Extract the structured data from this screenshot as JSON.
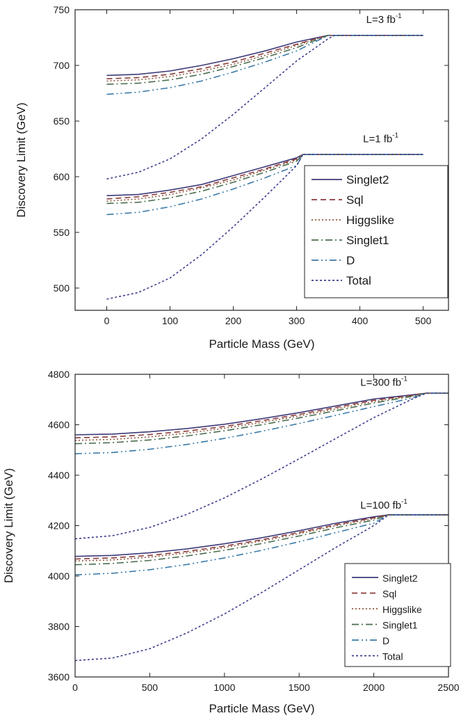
{
  "chart_data": [
    {
      "type": "line",
      "xlabel": "Particle Mass (GeV)",
      "ylabel": "Discovery Limit (GeV)",
      "xlim": [
        -50,
        540
      ],
      "ylim": [
        480,
        750
      ],
      "xticks": [
        0,
        100,
        200,
        300,
        400,
        500
      ],
      "yticks": [
        500,
        550,
        600,
        650,
        700,
        750
      ],
      "legend_position": "lower-right",
      "annotations": [
        {
          "text": "L=3 fb",
          "sup": "-1",
          "x": 410,
          "y": 738
        },
        {
          "text": "L=1 fb",
          "sup": "-1",
          "x": 405,
          "y": 631
        }
      ],
      "series": [
        {
          "name": "Singlet2",
          "color": "#3d3a78",
          "dash": "",
          "groups": [
            {
              "label": "L=3 fb-1",
              "x": [
                0,
                50,
                100,
                150,
                200,
                250,
                300,
                350,
                500
              ],
              "y": [
                691,
                692,
                695,
                700,
                706,
                713,
                721,
                727,
                727
              ]
            },
            {
              "label": "L=1 fb-1",
              "x": [
                0,
                50,
                100,
                150,
                200,
                250,
                300,
                310,
                500
              ],
              "y": [
                583,
                584,
                588,
                593,
                601,
                609,
                617,
                620,
                620
              ]
            }
          ]
        },
        {
          "name": "Sql",
          "color": "#8b3a3a",
          "dash": "8,5",
          "groups": [
            {
              "label": "L=3 fb-1",
              "x": [
                0,
                50,
                100,
                150,
                200,
                250,
                300,
                350,
                500
              ],
              "y": [
                688,
                689,
                692,
                697,
                703,
                711,
                719,
                727,
                727
              ]
            },
            {
              "label": "L=1 fb-1",
              "x": [
                0,
                50,
                100,
                150,
                200,
                250,
                300,
                310,
                500
              ],
              "y": [
                580,
                582,
                586,
                591,
                599,
                607,
                616,
                620,
                620
              ]
            }
          ]
        },
        {
          "name": "Higgslike",
          "color": "#8e5a3e",
          "dash": "2,3",
          "groups": [
            {
              "label": "L=3 fb-1",
              "x": [
                0,
                50,
                100,
                150,
                200,
                250,
                300,
                350,
                500
              ],
              "y": [
                686,
                687,
                690,
                695,
                701,
                709,
                718,
                727,
                727
              ]
            },
            {
              "label": "L=1 fb-1",
              "x": [
                0,
                50,
                100,
                150,
                200,
                250,
                300,
                310,
                500
              ],
              "y": [
                578,
                580,
                584,
                590,
                597,
                606,
                615,
                620,
                620
              ]
            }
          ]
        },
        {
          "name": "Singlet1",
          "color": "#4a6e4e",
          "dash": "10,4,2,4",
          "groups": [
            {
              "label": "L=3 fb-1",
              "x": [
                0,
                50,
                100,
                150,
                200,
                250,
                300,
                350,
                500
              ],
              "y": [
                683,
                684,
                687,
                692,
                699,
                707,
                716,
                727,
                727
              ]
            },
            {
              "label": "L=1 fb-1",
              "x": [
                0,
                50,
                100,
                150,
                200,
                250,
                300,
                310,
                500
              ],
              "y": [
                576,
                577,
                581,
                587,
                595,
                604,
                614,
                620,
                620
              ]
            }
          ]
        },
        {
          "name": "D",
          "color": "#3a7aa8",
          "dash": "10,4,2,4,2,4",
          "groups": [
            {
              "label": "L=3 fb-1",
              "x": [
                0,
                50,
                100,
                150,
                200,
                250,
                300,
                350,
                500
              ],
              "y": [
                674,
                676,
                680,
                686,
                694,
                703,
                713,
                727,
                727
              ]
            },
            {
              "label": "L=1 fb-1",
              "x": [
                0,
                50,
                100,
                150,
                200,
                250,
                300,
                310,
                500
              ],
              "y": [
                566,
                568,
                573,
                580,
                589,
                599,
                610,
                620,
                620
              ]
            }
          ]
        },
        {
          "name": "Total",
          "color": "#3b3c8c",
          "dash": "3,3",
          "groups": [
            {
              "label": "L=3 fb-1",
              "x": [
                0,
                50,
                100,
                150,
                200,
                250,
                300,
                350,
                360,
                500
              ],
              "y": [
                598,
                604,
                616,
                634,
                656,
                680,
                704,
                724,
                727,
                727
              ]
            },
            {
              "label": "L=1 fb-1",
              "x": [
                0,
                50,
                100,
                150,
                200,
                250,
                300,
                310,
                500
              ],
              "y": [
                490,
                496,
                509,
                530,
                555,
                582,
                610,
                620,
                620
              ]
            }
          ]
        }
      ]
    },
    {
      "type": "line",
      "xlabel": "Particle Mass (GeV)",
      "ylabel": "Discovery Limit (GeV)",
      "xlim": [
        0,
        2500
      ],
      "ylim": [
        3600,
        4800
      ],
      "xticks": [
        0,
        500,
        1000,
        1500,
        2000,
        2500
      ],
      "yticks": [
        3600,
        3800,
        4000,
        4200,
        4400,
        4600,
        4800
      ],
      "legend_position": "lower-right",
      "annotations": [
        {
          "text": "L=300 fb",
          "sup": "-1",
          "x": 1910,
          "y": 4755
        },
        {
          "text": "L=100 fb",
          "sup": "-1",
          "x": 1910,
          "y": 4268
        }
      ],
      "series": [
        {
          "name": "Singlet2",
          "color": "#3d3a78",
          "dash": "",
          "groups": [
            {
              "label": "L=300 fb-1",
              "x": [
                0,
                250,
                500,
                750,
                1000,
                1250,
                1500,
                1750,
                2000,
                2250,
                2350,
                2500
              ],
              "y": [
                4560,
                4563,
                4572,
                4585,
                4602,
                4624,
                4648,
                4675,
                4702,
                4718,
                4725,
                4725
              ]
            },
            {
              "label": "L=100 fb-1",
              "x": [
                0,
                250,
                500,
                750,
                1000,
                1250,
                1500,
                1750,
                2000,
                2100,
                2500
              ],
              "y": [
                4078,
                4082,
                4092,
                4108,
                4128,
                4152,
                4180,
                4210,
                4235,
                4243,
                4243
              ]
            }
          ]
        },
        {
          "name": "Sql",
          "color": "#8b3a3a",
          "dash": "8,5",
          "groups": [
            {
              "label": "L=300 fb-1",
              "x": [
                0,
                250,
                500,
                750,
                1000,
                1250,
                1500,
                1750,
                2000,
                2250,
                2350,
                2500
              ],
              "y": [
                4548,
                4552,
                4561,
                4575,
                4593,
                4616,
                4641,
                4669,
                4697,
                4716,
                4725,
                4725
              ]
            },
            {
              "label": "L=100 fb-1",
              "x": [
                0,
                250,
                500,
                750,
                1000,
                1250,
                1500,
                1750,
                2000,
                2100,
                2500
              ],
              "y": [
                4068,
                4072,
                4082,
                4098,
                4119,
                4144,
                4173,
                4204,
                4231,
                4243,
                4243
              ]
            }
          ]
        },
        {
          "name": "Higgslike",
          "color": "#8e5a3e",
          "dash": "2,3",
          "groups": [
            {
              "label": "L=300 fb-1",
              "x": [
                0,
                250,
                500,
                750,
                1000,
                1250,
                1500,
                1750,
                2000,
                2250,
                2350,
                2500
              ],
              "y": [
                4538,
                4542,
                4552,
                4567,
                4586,
                4609,
                4635,
                4663,
                4692,
                4714,
                4725,
                4725
              ]
            },
            {
              "label": "L=100 fb-1",
              "x": [
                0,
                250,
                500,
                750,
                1000,
                1250,
                1500,
                1750,
                2000,
                2100,
                2500
              ],
              "y": [
                4060,
                4064,
                4075,
                4092,
                4113,
                4139,
                4168,
                4200,
                4228,
                4243,
                4243
              ]
            }
          ]
        },
        {
          "name": "Singlet1",
          "color": "#4a6e4e",
          "dash": "10,4,2,4",
          "groups": [
            {
              "label": "L=300 fb-1",
              "x": [
                0,
                250,
                500,
                750,
                1000,
                1250,
                1500,
                1750,
                2000,
                2250,
                2350,
                2500
              ],
              "y": [
                4525,
                4529,
                4540,
                4556,
                4576,
                4600,
                4627,
                4656,
                4686,
                4712,
                4725,
                4725
              ]
            },
            {
              "label": "L=100 fb-1",
              "x": [
                0,
                250,
                500,
                750,
                1000,
                1250,
                1500,
                1750,
                2000,
                2100,
                2500
              ],
              "y": [
                4045,
                4050,
                4062,
                4080,
                4102,
                4129,
                4159,
                4192,
                4222,
                4243,
                4243
              ]
            }
          ]
        },
        {
          "name": "D",
          "color": "#3a7aa8",
          "dash": "10,4,2,4,2,4",
          "groups": [
            {
              "label": "L=300 fb-1",
              "x": [
                0,
                250,
                500,
                750,
                1000,
                1250,
                1500,
                1750,
                2000,
                2250,
                2350,
                2500
              ],
              "y": [
                4485,
                4490,
                4503,
                4522,
                4546,
                4574,
                4605,
                4638,
                4672,
                4705,
                4725,
                4725
              ]
            },
            {
              "label": "L=100 fb-1",
              "x": [
                0,
                250,
                500,
                750,
                1000,
                1250,
                1500,
                1750,
                2000,
                2100,
                2500
              ],
              "y": [
                4005,
                4011,
                4025,
                4046,
                4072,
                4102,
                4136,
                4173,
                4210,
                4243,
                4243
              ]
            }
          ]
        },
        {
          "name": "Total",
          "color": "#3b3c8c",
          "dash": "3,3",
          "groups": [
            {
              "label": "L=300 fb-1",
              "x": [
                0,
                250,
                500,
                750,
                1000,
                1250,
                1500,
                1750,
                2000,
                2250,
                2350,
                2500
              ],
              "y": [
                4148,
                4160,
                4193,
                4245,
                4310,
                4385,
                4465,
                4547,
                4628,
                4700,
                4725,
                4725
              ]
            },
            {
              "label": "L=100 fb-1",
              "x": [
                0,
                250,
                500,
                750,
                1000,
                1250,
                1500,
                1750,
                2000,
                2100,
                2500
              ],
              "y": [
                3665,
                3675,
                3712,
                3775,
                3850,
                3935,
                4025,
                4115,
                4200,
                4243,
                4243
              ]
            }
          ]
        }
      ]
    }
  ]
}
